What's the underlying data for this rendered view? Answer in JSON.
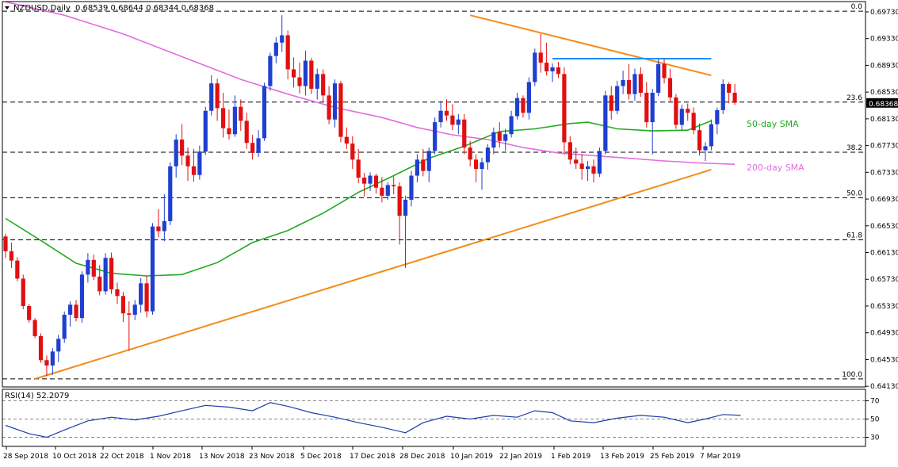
{
  "header": {
    "symbol": "NZDUSD,Daily",
    "ohlc": "0.68539 0.68644 0.68344 0.68368",
    "rsi_label": "RSI(14) 52.2079"
  },
  "chart_data": {
    "type": "candlestick",
    "symbol": "NZDUSD",
    "timeframe": "Daily",
    "last_price": "0.68368",
    "ylim": [
      0.6412,
      0.6986
    ],
    "y_ticks": [
      "0.69730",
      "0.69330",
      "0.68930",
      "0.68530",
      "0.68130",
      "0.67730",
      "0.67330",
      "0.66930",
      "0.66530",
      "0.66130",
      "0.65730",
      "0.65330",
      "0.64930",
      "0.64530",
      "0.64130"
    ],
    "x_ticks": [
      "28 Sep 2018",
      "10 Oct 2018",
      "22 Oct 2018",
      "1 Nov 2018",
      "13 Nov 2018",
      "23 Nov 2018",
      "5 Dec 2018",
      "17 Dec 2018",
      "28 Dec 2018",
      "10 Jan 2019",
      "22 Jan 2019",
      "1 Feb 2019",
      "13 Feb 2019",
      "25 Feb 2019",
      "7 Mar 2019"
    ],
    "fibonacci": [
      {
        "label": "0.0",
        "price": 0.6974
      },
      {
        "label": "23.6",
        "price": 0.6838
      },
      {
        "label": "38.2",
        "price": 0.6763
      },
      {
        "label": "50.0",
        "price": 0.6695
      },
      {
        "label": "61.8",
        "price": 0.6632
      },
      {
        "label": "100.0",
        "price": 0.6424
      }
    ],
    "annotations": {
      "sma50_label": "50-day SMA",
      "sma200_label": "200-day SMA"
    },
    "trendlines": [
      {
        "name": "support",
        "from": [
          "2018-10-01",
          0.6424
        ],
        "to": [
          "2019-03-11",
          0.6737
        ]
      },
      {
        "name": "resistance",
        "from": [
          "2019-01-11",
          0.6968
        ],
        "to": [
          "2019-03-11",
          0.6878
        ]
      },
      {
        "name": "horizontal",
        "from": [
          "2019-01-31",
          0.6903
        ],
        "to": [
          "2019-03-11",
          0.6903
        ]
      }
    ],
    "candles": [
      [
        0.6637,
        0.6641,
        0.6605,
        0.6615
      ],
      [
        0.6615,
        0.6628,
        0.659,
        0.6601
      ],
      [
        0.6601,
        0.6606,
        0.657,
        0.6574
      ],
      [
        0.6574,
        0.658,
        0.6528,
        0.6533
      ],
      [
        0.6533,
        0.6536,
        0.6508,
        0.6512
      ],
      [
        0.6512,
        0.6515,
        0.6485,
        0.6488
      ],
      [
        0.6488,
        0.6492,
        0.6448,
        0.6452
      ],
      [
        0.6452,
        0.6459,
        0.6428,
        0.6444
      ],
      [
        0.6444,
        0.647,
        0.643,
        0.6465
      ],
      [
        0.6465,
        0.649,
        0.6449,
        0.6484
      ],
      [
        0.6484,
        0.6525,
        0.6478,
        0.652
      ],
      [
        0.652,
        0.654,
        0.6502,
        0.6535
      ],
      [
        0.6535,
        0.6542,
        0.651,
        0.6515
      ],
      [
        0.6515,
        0.6585,
        0.6508,
        0.658
      ],
      [
        0.658,
        0.6612,
        0.6568,
        0.6602
      ],
      [
        0.6602,
        0.661,
        0.6572,
        0.6577
      ],
      [
        0.6577,
        0.6594,
        0.6549,
        0.6555
      ],
      [
        0.6555,
        0.6612,
        0.655,
        0.6605
      ],
      [
        0.6605,
        0.6613,
        0.6551,
        0.6558
      ],
      [
        0.6558,
        0.6568,
        0.6536,
        0.6548
      ],
      [
        0.6548,
        0.6554,
        0.6509,
        0.6522
      ],
      [
        0.6522,
        0.654,
        0.6466,
        0.652
      ],
      [
        0.652,
        0.6542,
        0.6512,
        0.6535
      ],
      [
        0.6535,
        0.6575,
        0.6523,
        0.6567
      ],
      [
        0.6567,
        0.6578,
        0.6516,
        0.6525
      ],
      [
        0.6525,
        0.6657,
        0.652,
        0.6652
      ],
      [
        0.6652,
        0.6678,
        0.6636,
        0.6645
      ],
      [
        0.6645,
        0.67,
        0.663,
        0.666
      ],
      [
        0.666,
        0.6748,
        0.6654,
        0.6742
      ],
      [
        0.6742,
        0.679,
        0.6725,
        0.6782
      ],
      [
        0.6782,
        0.6805,
        0.6744,
        0.6758
      ],
      [
        0.6758,
        0.677,
        0.672,
        0.6742
      ],
      [
        0.6742,
        0.6768,
        0.6719,
        0.6729
      ],
      [
        0.6729,
        0.6773,
        0.6722,
        0.6764
      ],
      [
        0.6764,
        0.6831,
        0.6759,
        0.6825
      ],
      [
        0.6825,
        0.6878,
        0.6818,
        0.6866
      ],
      [
        0.6866,
        0.6873,
        0.681,
        0.6829
      ],
      [
        0.6829,
        0.6852,
        0.6785,
        0.6799
      ],
      [
        0.6799,
        0.6827,
        0.6782,
        0.679
      ],
      [
        0.679,
        0.6848,
        0.6786,
        0.6831
      ],
      [
        0.6831,
        0.6842,
        0.6795,
        0.681
      ],
      [
        0.681,
        0.6822,
        0.6768,
        0.6777
      ],
      [
        0.6777,
        0.6789,
        0.6752,
        0.6762
      ],
      [
        0.6762,
        0.6796,
        0.6756,
        0.6784
      ],
      [
        0.6784,
        0.6867,
        0.678,
        0.6862
      ],
      [
        0.6862,
        0.6912,
        0.6855,
        0.6907
      ],
      [
        0.6907,
        0.6935,
        0.6896,
        0.6927
      ],
      [
        0.6927,
        0.6968,
        0.6913,
        0.6938
      ],
      [
        0.6938,
        0.6945,
        0.6872,
        0.6887
      ],
      [
        0.6887,
        0.6905,
        0.686,
        0.6875
      ],
      [
        0.6875,
        0.6897,
        0.6851,
        0.6862
      ],
      [
        0.6862,
        0.6915,
        0.6848,
        0.69
      ],
      [
        0.69,
        0.6904,
        0.685,
        0.6858
      ],
      [
        0.6858,
        0.6888,
        0.6842,
        0.688
      ],
      [
        0.688,
        0.6887,
        0.6838,
        0.6848
      ],
      [
        0.6848,
        0.6862,
        0.6805,
        0.6812
      ],
      [
        0.6812,
        0.6872,
        0.68,
        0.6866
      ],
      [
        0.6866,
        0.687,
        0.6778,
        0.6786
      ],
      [
        0.6786,
        0.68,
        0.6768,
        0.6776
      ],
      [
        0.6776,
        0.6787,
        0.6738,
        0.6752
      ],
      [
        0.6752,
        0.6768,
        0.6717,
        0.6725
      ],
      [
        0.6725,
        0.6732,
        0.6697,
        0.6716
      ],
      [
        0.6716,
        0.6733,
        0.6705,
        0.6728
      ],
      [
        0.6728,
        0.6731,
        0.6701,
        0.671
      ],
      [
        0.671,
        0.6726,
        0.6688,
        0.6698
      ],
      [
        0.6698,
        0.6718,
        0.6692,
        0.6714
      ],
      [
        0.6714,
        0.6727,
        0.67,
        0.6712
      ],
      [
        0.6712,
        0.6718,
        0.6625,
        0.6668
      ],
      [
        0.6668,
        0.6698,
        0.659,
        0.6692
      ],
      [
        0.6692,
        0.6735,
        0.6682,
        0.6728
      ],
      [
        0.6728,
        0.676,
        0.6718,
        0.6752
      ],
      [
        0.6752,
        0.6768,
        0.6727,
        0.6735
      ],
      [
        0.6735,
        0.677,
        0.6718,
        0.6765
      ],
      [
        0.6765,
        0.6815,
        0.676,
        0.6808
      ],
      [
        0.6808,
        0.684,
        0.68,
        0.6825
      ],
      [
        0.6825,
        0.6842,
        0.681,
        0.6818
      ],
      [
        0.6818,
        0.6835,
        0.6796,
        0.6804
      ],
      [
        0.6804,
        0.682,
        0.679,
        0.6812
      ],
      [
        0.6812,
        0.682,
        0.676,
        0.677
      ],
      [
        0.677,
        0.678,
        0.6742,
        0.6752
      ],
      [
        0.6752,
        0.676,
        0.6718,
        0.6738
      ],
      [
        0.6738,
        0.6755,
        0.6707,
        0.6748
      ],
      [
        0.6748,
        0.6775,
        0.6737,
        0.677
      ],
      [
        0.677,
        0.68,
        0.676,
        0.6793
      ],
      [
        0.6793,
        0.6808,
        0.677,
        0.678
      ],
      [
        0.678,
        0.6798,
        0.6765,
        0.679
      ],
      [
        0.679,
        0.6825,
        0.6785,
        0.6817
      ],
      [
        0.6817,
        0.6852,
        0.6812,
        0.6844
      ],
      [
        0.6844,
        0.6848,
        0.6815,
        0.6822
      ],
      [
        0.6822,
        0.6875,
        0.6812,
        0.6868
      ],
      [
        0.6868,
        0.6918,
        0.6862,
        0.6912
      ],
      [
        0.6912,
        0.694,
        0.6882,
        0.6897
      ],
      [
        0.6897,
        0.6927,
        0.6878,
        0.6884
      ],
      [
        0.6884,
        0.6896,
        0.6868,
        0.689
      ],
      [
        0.689,
        0.6898,
        0.6874,
        0.688
      ],
      [
        0.688,
        0.689,
        0.676,
        0.6778
      ],
      [
        0.6778,
        0.6787,
        0.6745,
        0.6752
      ],
      [
        0.6752,
        0.677,
        0.6738,
        0.6746
      ],
      [
        0.6746,
        0.676,
        0.6722,
        0.6738
      ],
      [
        0.6738,
        0.675,
        0.672,
        0.6742
      ],
      [
        0.6742,
        0.6752,
        0.6718,
        0.6731
      ],
      [
        0.6731,
        0.677,
        0.6726,
        0.6765
      ],
      [
        0.6765,
        0.6855,
        0.676,
        0.6848
      ],
      [
        0.6848,
        0.6862,
        0.6812,
        0.6825
      ],
      [
        0.6825,
        0.687,
        0.682,
        0.6862
      ],
      [
        0.6862,
        0.6885,
        0.685,
        0.6871
      ],
      [
        0.6871,
        0.6895,
        0.6842,
        0.685
      ],
      [
        0.685,
        0.6888,
        0.684,
        0.688
      ],
      [
        0.688,
        0.689,
        0.6846,
        0.6852
      ],
      [
        0.6852,
        0.6868,
        0.68,
        0.6808
      ],
      [
        0.6808,
        0.6858,
        0.676,
        0.6852
      ],
      [
        0.6852,
        0.6902,
        0.6847,
        0.6895
      ],
      [
        0.6895,
        0.6903,
        0.6866,
        0.6874
      ],
      [
        0.6874,
        0.6888,
        0.6838,
        0.6845
      ],
      [
        0.6845,
        0.685,
        0.6798,
        0.6804
      ],
      [
        0.6804,
        0.6834,
        0.6796,
        0.6828
      ],
      [
        0.6828,
        0.6836,
        0.681,
        0.6822
      ],
      [
        0.6822,
        0.683,
        0.679,
        0.6796
      ],
      [
        0.6796,
        0.6806,
        0.6758,
        0.6766
      ],
      [
        0.6766,
        0.6778,
        0.675,
        0.6772
      ],
      [
        0.6772,
        0.6812,
        0.6766,
        0.6805
      ],
      [
        0.6805,
        0.683,
        0.679,
        0.6826
      ],
      [
        0.6826,
        0.6872,
        0.682,
        0.6865
      ],
      [
        0.6865,
        0.6868,
        0.6836,
        0.6852
      ],
      [
        0.6852,
        0.6865,
        0.6834,
        0.6837
      ]
    ],
    "sma50": [
      [
        0,
        0.6664
      ],
      [
        6,
        0.6631
      ],
      [
        12,
        0.6597
      ],
      [
        18,
        0.6582
      ],
      [
        24,
        0.6578
      ],
      [
        30,
        0.658
      ],
      [
        36,
        0.6598
      ],
      [
        42,
        0.6628
      ],
      [
        48,
        0.6646
      ],
      [
        54,
        0.6672
      ],
      [
        60,
        0.6703
      ],
      [
        66,
        0.6728
      ],
      [
        72,
        0.6754
      ],
      [
        78,
        0.6772
      ],
      [
        84,
        0.6794
      ],
      [
        90,
        0.6798
      ],
      [
        96,
        0.6806
      ],
      [
        99,
        0.6808
      ],
      [
        104,
        0.6798
      ],
      [
        110,
        0.6795
      ],
      [
        116,
        0.6796
      ],
      [
        120,
        0.681
      ]
    ],
    "sma200": [
      [
        0,
        0.6988
      ],
      [
        10,
        0.6968
      ],
      [
        20,
        0.694
      ],
      [
        30,
        0.6906
      ],
      [
        40,
        0.6872
      ],
      [
        48,
        0.685
      ],
      [
        56,
        0.683
      ],
      [
        64,
        0.6815
      ],
      [
        70,
        0.68
      ],
      [
        76,
        0.6789
      ],
      [
        82,
        0.6782
      ],
      [
        88,
        0.677
      ],
      [
        94,
        0.6762
      ],
      [
        100,
        0.6758
      ],
      [
        106,
        0.6754
      ],
      [
        112,
        0.675
      ],
      [
        118,
        0.6747
      ],
      [
        124,
        0.6745
      ]
    ],
    "rsi": {
      "ylim": [
        20,
        80
      ],
      "ticks": [
        "70",
        "50",
        "30"
      ],
      "values": [
        [
          0,
          43
        ],
        [
          4,
          34
        ],
        [
          7,
          30
        ],
        [
          10,
          38
        ],
        [
          14,
          48
        ],
        [
          18,
          52
        ],
        [
          22,
          49
        ],
        [
          26,
          53
        ],
        [
          30,
          59
        ],
        [
          34,
          65
        ],
        [
          38,
          63
        ],
        [
          42,
          59
        ],
        [
          45,
          68
        ],
        [
          48,
          64
        ],
        [
          52,
          57
        ],
        [
          56,
          52
        ],
        [
          60,
          46
        ],
        [
          64,
          41
        ],
        [
          68,
          35
        ],
        [
          71,
          46
        ],
        [
          75,
          53
        ],
        [
          79,
          50
        ],
        [
          83,
          54
        ],
        [
          87,
          52
        ],
        [
          90,
          59
        ],
        [
          93,
          57
        ],
        [
          96,
          48
        ],
        [
          100,
          46
        ],
        [
          104,
          51
        ],
        [
          108,
          54
        ],
        [
          112,
          52
        ],
        [
          116,
          46
        ],
        [
          119,
          50
        ],
        [
          122,
          55
        ],
        [
          125,
          54
        ]
      ]
    }
  }
}
